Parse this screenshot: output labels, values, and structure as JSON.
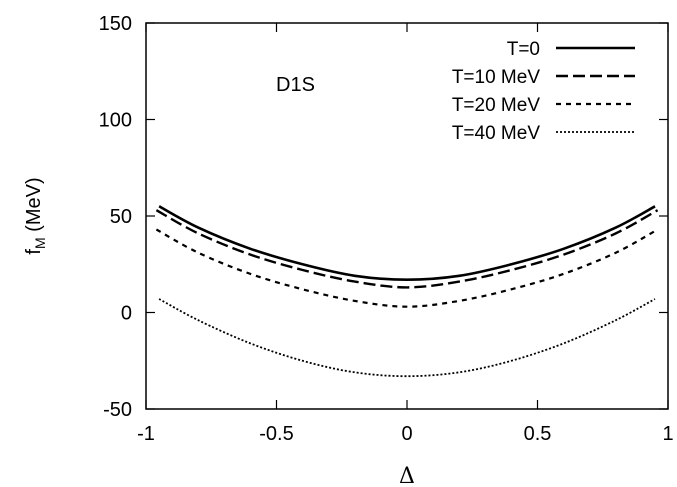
{
  "chart_data": {
    "type": "line",
    "xlabel": "Δ",
    "ylabel": "f",
    "ylabel_sub": "M",
    "ylabel_unit": " (MeV)",
    "xlim": [
      -1,
      1
    ],
    "ylim": [
      -50,
      150
    ],
    "xticks": [
      -1,
      -0.5,
      0,
      0.5,
      1
    ],
    "xtick_labels": [
      "-1",
      "-0.5",
      "0",
      "0.5",
      "1"
    ],
    "yticks": [
      -50,
      0,
      50,
      100,
      150
    ],
    "ytick_labels": [
      "-50",
      "0",
      "50",
      "100",
      "150"
    ],
    "grid": false,
    "legend_position": "top-right",
    "annotation": "D1S",
    "series": [
      {
        "name": "T=0",
        "style": "solid",
        "x": [
          -0.95,
          -0.8,
          -0.6,
          -0.4,
          -0.2,
          0,
          0.2,
          0.4,
          0.6,
          0.8,
          0.95
        ],
        "y": [
          55,
          44,
          33,
          25,
          19,
          17,
          19,
          25,
          33,
          44,
          55
        ]
      },
      {
        "name": "T=10 MeV",
        "style": "dashed",
        "x": [
          -0.96,
          -0.8,
          -0.6,
          -0.4,
          -0.2,
          0,
          0.2,
          0.4,
          0.6,
          0.8,
          0.96
        ],
        "y": [
          53,
          41,
          30,
          22,
          16,
          13,
          16,
          22,
          30,
          41,
          53
        ]
      },
      {
        "name": "T=20 MeV",
        "style": "short-dashed",
        "x": [
          -0.96,
          -0.8,
          -0.6,
          -0.4,
          -0.2,
          0,
          0.2,
          0.4,
          0.6,
          0.8,
          0.96
        ],
        "y": [
          43,
          31,
          20,
          12,
          6,
          3,
          6,
          12,
          20,
          31,
          43
        ]
      },
      {
        "name": "T=40 MeV",
        "style": "dotted",
        "x": [
          -0.95,
          -0.8,
          -0.6,
          -0.4,
          -0.2,
          0,
          0.2,
          0.4,
          0.6,
          0.8,
          0.95
        ],
        "y": [
          7,
          -4,
          -16,
          -25,
          -31,
          -33,
          -31,
          -25,
          -16,
          -4,
          7
        ]
      }
    ]
  }
}
